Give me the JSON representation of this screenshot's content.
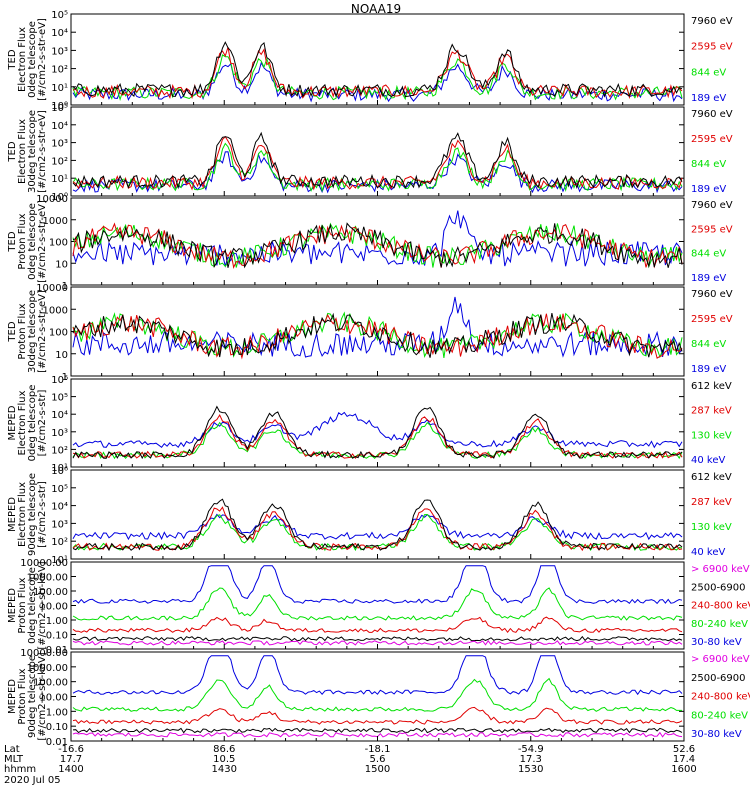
{
  "title": "NOAA19",
  "colors": {
    "black": "#000000",
    "red": "#e00000",
    "green": "#00e000",
    "blue": "#0000e0",
    "magenta": "#e000e0"
  },
  "chart_data": [
    {
      "type": "line",
      "ylabel": [
        "TED",
        "Electron Flux",
        "0deg telescope",
        "[#/cm2-s-str-eV]"
      ],
      "yscale": "log",
      "ticks": [
        "10⁰",
        "10¹",
        "10²",
        "10³",
        "10⁴",
        "10⁵"
      ],
      "legend": [
        {
          "label": "7960 eV",
          "color": "#000000"
        },
        {
          "label": "2595 eV",
          "color": "#e00000"
        },
        {
          "label": "844 eV",
          "color": "#00e000"
        },
        {
          "label": "189 eV",
          "color": "#0000e0"
        }
      ]
    },
    {
      "type": "line",
      "ylabel": [
        "TED",
        "Electron Flux",
        "30deg telescope",
        "[#/cm2-s-str-eV]"
      ],
      "yscale": "log",
      "ticks": [
        "10⁰",
        "10¹",
        "10²",
        "10³",
        "10⁴",
        "10⁵"
      ],
      "legend": [
        {
          "label": "7960 eV",
          "color": "#000000"
        },
        {
          "label": "2595 eV",
          "color": "#e00000"
        },
        {
          "label": "844 eV",
          "color": "#00e000"
        },
        {
          "label": "189 eV",
          "color": "#0000e0"
        }
      ]
    },
    {
      "type": "line",
      "ylabel": [
        "TED",
        "Proton Flux",
        "0deg telescope",
        "[#/cm2-s-str-eV]"
      ],
      "yscale": "log",
      "ticks": [
        "1",
        "10",
        "100",
        "1000",
        "10000"
      ],
      "legend": [
        {
          "label": "7960 eV",
          "color": "#000000"
        },
        {
          "label": "2595 eV",
          "color": "#e00000"
        },
        {
          "label": "844 eV",
          "color": "#00e000"
        },
        {
          "label": "189 eV",
          "color": "#0000e0"
        }
      ]
    },
    {
      "type": "line",
      "ylabel": [
        "TED",
        "Proton Flux",
        "30deg telescope",
        "[#/cm2-s-str-eV]"
      ],
      "yscale": "log",
      "ticks": [
        "1",
        "10",
        "100",
        "1000",
        "10000"
      ],
      "legend": [
        {
          "label": "7960 eV",
          "color": "#000000"
        },
        {
          "label": "2595 eV",
          "color": "#e00000"
        },
        {
          "label": "844 eV",
          "color": "#00e000"
        },
        {
          "label": "189 eV",
          "color": "#0000e0"
        }
      ]
    },
    {
      "type": "line",
      "ylabel": [
        "MEPED",
        "Electron Flux",
        "0deg telescope",
        "[#/cm2-s-str]"
      ],
      "yscale": "log",
      "ticks": [
        "10¹",
        "10²",
        "10³",
        "10⁴",
        "10⁵",
        "10⁶"
      ],
      "legend": [
        {
          "label": "612 keV",
          "color": "#000000"
        },
        {
          "label": "287 keV",
          "color": "#e00000"
        },
        {
          "label": "130 keV",
          "color": "#00e000"
        },
        {
          "label": "40 keV",
          "color": "#0000e0"
        }
      ]
    },
    {
      "type": "line",
      "ylabel": [
        "MEPED",
        "Electron Flux",
        "90deg telescope",
        "[#/cm2-s-str]"
      ],
      "yscale": "log",
      "ticks": [
        "10¹",
        "10²",
        "10³",
        "10⁴",
        "10⁵",
        "10⁶"
      ],
      "legend": [
        {
          "label": "612 keV",
          "color": "#000000"
        },
        {
          "label": "287 keV",
          "color": "#e00000"
        },
        {
          "label": "130 keV",
          "color": "#00e000"
        },
        {
          "label": "40 keV",
          "color": "#0000e0"
        }
      ]
    },
    {
      "type": "line",
      "ylabel": [
        "MEPED",
        "Proton Flux",
        "0deg telescope",
        "[#/cm2-s-str-keV]"
      ],
      "yscale": "log",
      "ticks": [
        "0.01",
        "0.10",
        "1.00",
        "10.00",
        "100.00",
        "1000.00",
        "10000.00"
      ],
      "legend": [
        {
          "label": "> 6900 keV",
          "color": "#e000e0"
        },
        {
          "label": "2500-6900",
          "color": "#000000"
        },
        {
          "label": "240-800 keV",
          "color": "#e00000"
        },
        {
          "label": "80-240 keV",
          "color": "#00e000"
        },
        {
          "label": "30-80 keV",
          "color": "#0000e0"
        }
      ]
    },
    {
      "type": "line",
      "ylabel": [
        "MEPED",
        "Proton Flux",
        "90deg telescope",
        "[#/cm2-s-str-keV]"
      ],
      "yscale": "log",
      "ticks": [
        "0.01",
        "0.10",
        "1.00",
        "10.00",
        "100.00",
        "1000.00",
        "10000.00"
      ],
      "legend": [
        {
          "label": "> 6900 keV",
          "color": "#e000e0"
        },
        {
          "label": "2500-6900",
          "color": "#000000"
        },
        {
          "label": "240-800 keV",
          "color": "#e00000"
        },
        {
          "label": "80-240 keV",
          "color": "#00e000"
        },
        {
          "label": "30-80 keV",
          "color": "#0000e0"
        }
      ]
    }
  ],
  "xaxis": {
    "rows": [
      {
        "label": "Lat",
        "values": [
          "-16.6",
          "86.6",
          "-18.1",
          "-54.9",
          "52.6"
        ]
      },
      {
        "label": "MLT",
        "values": [
          "17.7",
          "10.5",
          "5.6",
          "17.3",
          "17.4"
        ]
      },
      {
        "label": "hhmm",
        "values": [
          "1400",
          "1430",
          "1500",
          "1530",
          "1600"
        ]
      }
    ],
    "date": "2020 Jul 05"
  }
}
